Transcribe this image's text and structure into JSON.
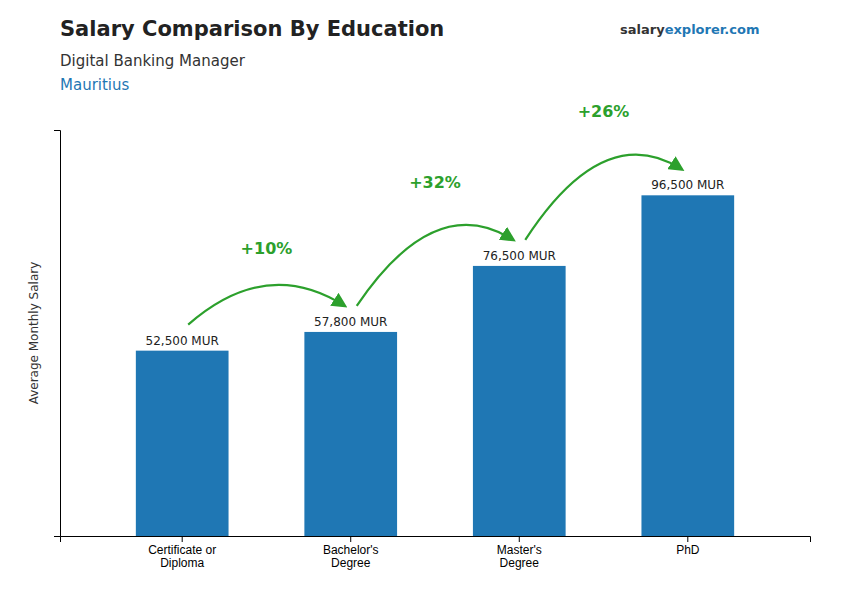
{
  "chart_data": {
    "type": "bar",
    "title": "Salary Comparison By Education",
    "subtitle": "Digital Banking Manager",
    "location": "Mauritius",
    "watermark": [
      "salary",
      "explorer.com"
    ],
    "y_label": "Average Monthly Salary",
    "categories": [
      "Certificate or\nDiploma",
      "Bachelor's\nDegree",
      "Master's\nDegree",
      "PhD"
    ],
    "values": [
      52500,
      57800,
      76500,
      96500
    ],
    "value_labels": [
      "52,500 MUR",
      "57,800 MUR",
      "76,500 MUR",
      "96,500 MUR"
    ],
    "data_labels": true,
    "annotations": [
      "+10%",
      "+32%",
      "+26%"
    ],
    "ylim": [
      0,
      115000
    ],
    "yticks": [],
    "tick_labels": "x",
    "grid": false
  }
}
